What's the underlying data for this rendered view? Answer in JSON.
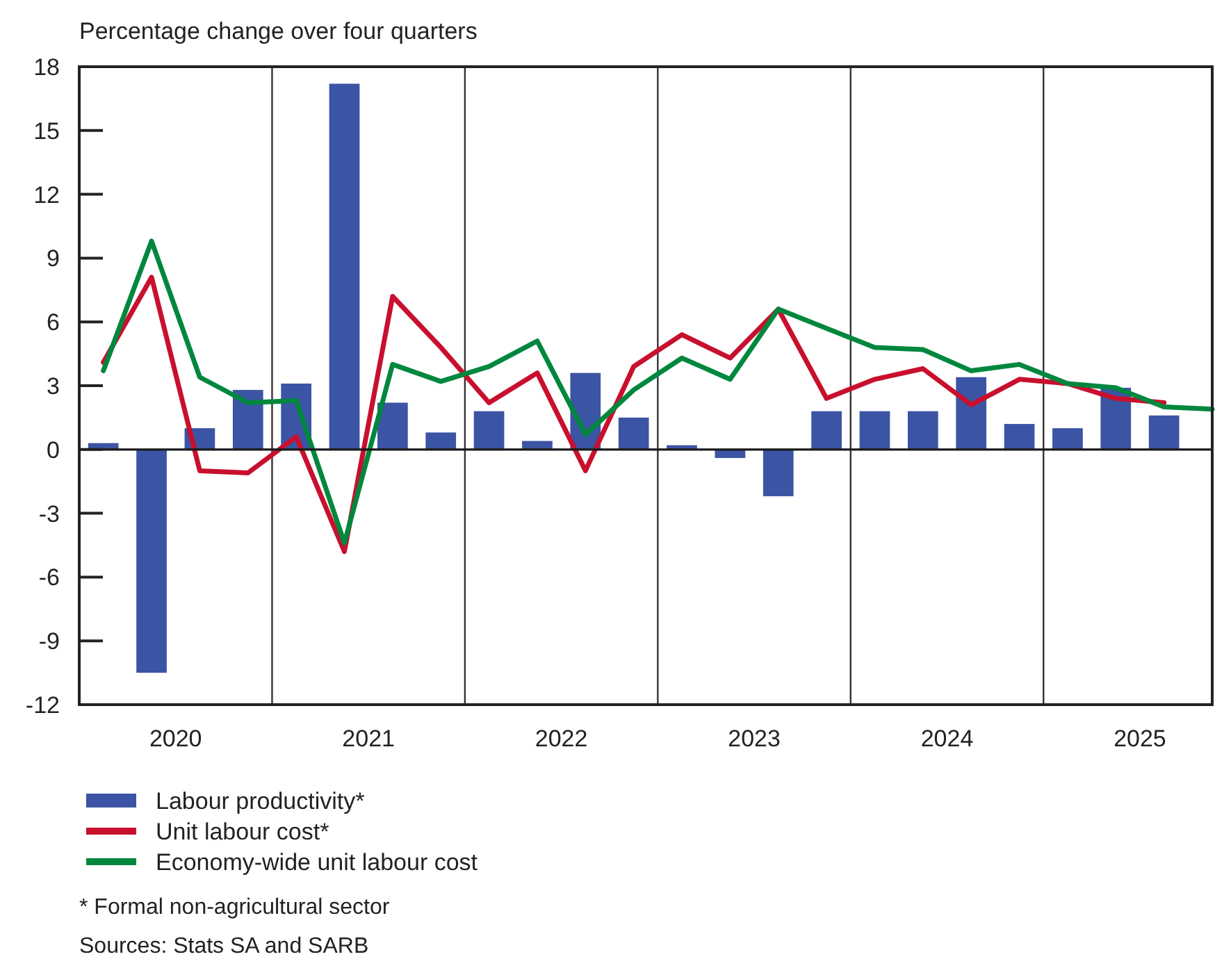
{
  "chart_data": {
    "type": "bar",
    "ylabel": "Percentage change over four quarters",
    "x": [
      2020.125,
      2020.375,
      2020.625,
      2020.875,
      2021.125,
      2021.375,
      2021.625,
      2021.875,
      2022.125,
      2022.375,
      2022.625,
      2022.875,
      2023.125,
      2023.375,
      2023.625,
      2023.875,
      2024.125,
      2024.375,
      2024.625,
      2024.875,
      2025.125,
      2025.375,
      2025.625,
      2025.875
    ],
    "series": [
      {
        "name": "Labour productivity*",
        "color": "#3b54a4",
        "values": [
          0.3,
          -10.5,
          1.0,
          2.8,
          3.1,
          17.2,
          2.2,
          0.8,
          1.8,
          0.4,
          3.6,
          1.5,
          0.2,
          -0.4,
          -2.2,
          1.8,
          1.8,
          1.8,
          3.4,
          1.2,
          1.0,
          2.9,
          1.6,
          null
        ]
      },
      {
        "name": "Unit labour cost*",
        "type": "line",
        "color": "#c8102e",
        "values": [
          4.1,
          8.1,
          -1.0,
          -1.1,
          0.6,
          -4.8,
          7.2,
          4.8,
          2.2,
          3.6,
          -1.0,
          3.9,
          5.4,
          4.3,
          6.6,
          2.4,
          3.3,
          3.8,
          2.1,
          3.3,
          3.1,
          2.4,
          2.2,
          null
        ]
      },
      {
        "name": "Economy-wide unit labour cost",
        "type": "line",
        "color": "#00873e",
        "values": [
          3.7,
          9.8,
          3.4,
          2.2,
          2.3,
          -4.4,
          4.0,
          3.2,
          3.9,
          5.1,
          0.7,
          2.8,
          4.3,
          3.3,
          6.6,
          5.7,
          4.8,
          4.7,
          3.7,
          4.0,
          3.1,
          2.9,
          2.0,
          1.9
        ]
      }
    ],
    "xlim": [
      2020,
      2025.875
    ],
    "xticks": [
      {
        "value": 2020.5,
        "label": "2020"
      },
      {
        "value": 2021.5,
        "label": "2021"
      },
      {
        "value": 2022.5,
        "label": "2022"
      },
      {
        "value": 2023.5,
        "label": "2023"
      },
      {
        "value": 2024.5,
        "label": "2024"
      },
      {
        "value": 2025.5,
        "label": "2025"
      }
    ],
    "ylim": [
      -12,
      18
    ],
    "yticks": [
      -12,
      -9,
      -6,
      -3,
      0,
      3,
      6,
      9,
      12,
      15,
      18
    ],
    "ref_lines": [
      {
        "axis": "x",
        "value": 2021,
        "color": "#333333"
      },
      {
        "axis": "x",
        "value": 2022,
        "color": "#333333"
      },
      {
        "axis": "x",
        "value": 2023,
        "color": "#333333"
      },
      {
        "axis": "x",
        "value": 2024,
        "color": "#333333"
      },
      {
        "axis": "x",
        "value": 2025,
        "color": "#333333"
      },
      {
        "axis": "y",
        "value": 0,
        "color": "#1a1a1a"
      }
    ],
    "grid": false,
    "legend": "bottom",
    "line_style": "solid",
    "marker": "none",
    "annotations": [
      "* Formal non-agricultural sector",
      "Sources: Stats SA and SARB"
    ]
  }
}
